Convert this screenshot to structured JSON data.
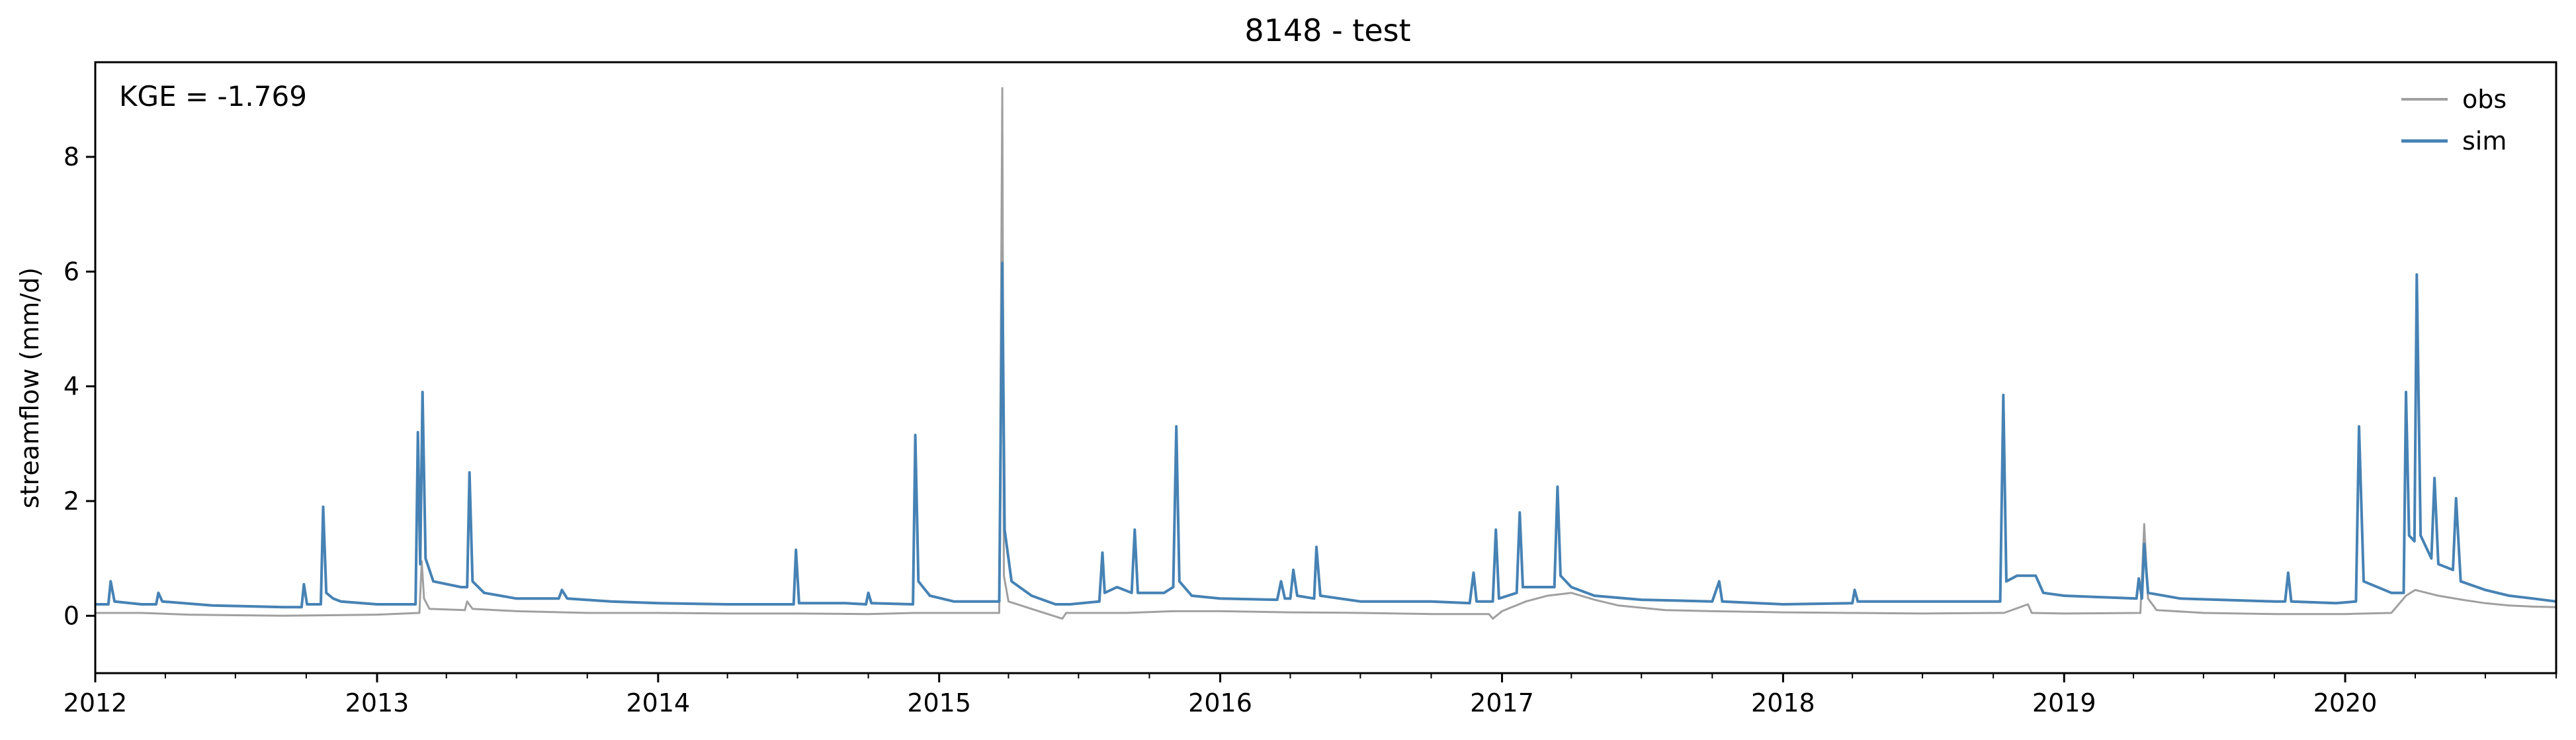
{
  "chart_data": {
    "type": "line",
    "title": "8148 - test",
    "xlabel": "",
    "ylabel": "streamflow (mm/d)",
    "annotation": "KGE = -1.769",
    "xlim": [
      "2012-01-01",
      "2020-10-01"
    ],
    "ylim": [
      -1,
      9.65
    ],
    "x_ticks": [
      "2012",
      "2013",
      "2014",
      "2015",
      "2016",
      "2017",
      "2018",
      "2019",
      "2020"
    ],
    "y_ticks": [
      0,
      2,
      4,
      6,
      8
    ],
    "legend_position": "top-right",
    "grid": false,
    "series": [
      {
        "name": "obs",
        "color": "#a0a0a0",
        "points": [
          [
            "2012-01-01",
            0.05
          ],
          [
            "2012-03-01",
            0.05
          ],
          [
            "2012-05-01",
            0.02
          ],
          [
            "2012-07-01",
            0.01
          ],
          [
            "2012-09-01",
            0.0
          ],
          [
            "2012-11-01",
            0.01
          ],
          [
            "2013-01-01",
            0.02
          ],
          [
            "2013-02-25",
            0.05
          ],
          [
            "2013-02-28",
            0.95
          ],
          [
            "2013-03-03",
            0.3
          ],
          [
            "2013-03-10",
            0.12
          ],
          [
            "2013-04-25",
            0.1
          ],
          [
            "2013-04-28",
            0.25
          ],
          [
            "2013-05-05",
            0.12
          ],
          [
            "2013-07-01",
            0.08
          ],
          [
            "2013-10-01",
            0.05
          ],
          [
            "2014-01-01",
            0.05
          ],
          [
            "2014-04-01",
            0.04
          ],
          [
            "2014-07-01",
            0.04
          ],
          [
            "2014-10-01",
            0.03
          ],
          [
            "2014-11-30",
            0.05
          ],
          [
            "2015-01-15",
            0.05
          ],
          [
            "2015-03-20",
            0.05
          ],
          [
            "2015-03-24",
            9.2
          ],
          [
            "2015-03-26",
            0.7
          ],
          [
            "2015-04-01",
            0.25
          ],
          [
            "2015-05-01",
            0.12
          ],
          [
            "2015-06-10",
            -0.05
          ],
          [
            "2015-06-15",
            0.05
          ],
          [
            "2015-09-01",
            0.05
          ],
          [
            "2015-11-01",
            0.08
          ],
          [
            "2016-01-01",
            0.08
          ],
          [
            "2016-04-01",
            0.06
          ],
          [
            "2016-07-01",
            0.05
          ],
          [
            "2016-10-01",
            0.03
          ],
          [
            "2016-12-15",
            0.03
          ],
          [
            "2016-12-20",
            -0.05
          ],
          [
            "2017-01-01",
            0.08
          ],
          [
            "2017-02-01",
            0.25
          ],
          [
            "2017-03-01",
            0.35
          ],
          [
            "2017-04-01",
            0.4
          ],
          [
            "2017-05-01",
            0.28
          ],
          [
            "2017-06-01",
            0.18
          ],
          [
            "2017-08-01",
            0.1
          ],
          [
            "2017-10-01",
            0.08
          ],
          [
            "2018-01-01",
            0.06
          ],
          [
            "2018-04-01",
            0.05
          ],
          [
            "2018-07-01",
            0.04
          ],
          [
            "2018-10-10",
            0.05
          ],
          [
            "2018-10-15",
            0.05
          ],
          [
            "2018-11-15",
            0.2
          ],
          [
            "2018-11-20",
            0.05
          ],
          [
            "2019-01-01",
            0.04
          ],
          [
            "2019-04-10",
            0.05
          ],
          [
            "2019-04-15",
            1.6
          ],
          [
            "2019-04-20",
            0.3
          ],
          [
            "2019-05-01",
            0.1
          ],
          [
            "2019-07-01",
            0.05
          ],
          [
            "2019-10-01",
            0.03
          ],
          [
            "2020-01-01",
            0.03
          ],
          [
            "2020-03-01",
            0.05
          ],
          [
            "2020-03-20",
            0.35
          ],
          [
            "2020-04-01",
            0.45
          ],
          [
            "2020-05-01",
            0.35
          ],
          [
            "2020-06-01",
            0.28
          ],
          [
            "2020-07-01",
            0.22
          ],
          [
            "2020-08-01",
            0.18
          ],
          [
            "2020-09-01",
            0.16
          ],
          [
            "2020-10-01",
            0.15
          ]
        ]
      },
      {
        "name": "sim",
        "color": "#4682b4",
        "points": [
          [
            "2012-01-01",
            0.2
          ],
          [
            "2012-01-18",
            0.2
          ],
          [
            "2012-01-21",
            0.6
          ],
          [
            "2012-01-26",
            0.25
          ],
          [
            "2012-03-01",
            0.2
          ],
          [
            "2012-03-20",
            0.2
          ],
          [
            "2012-03-23",
            0.4
          ],
          [
            "2012-03-28",
            0.25
          ],
          [
            "2012-06-01",
            0.18
          ],
          [
            "2012-09-01",
            0.15
          ],
          [
            "2012-09-25",
            0.15
          ],
          [
            "2012-09-28",
            0.55
          ],
          [
            "2012-10-02",
            0.2
          ],
          [
            "2012-10-20",
            0.2
          ],
          [
            "2012-10-23",
            1.9
          ],
          [
            "2012-10-27",
            0.4
          ],
          [
            "2012-11-05",
            0.3
          ],
          [
            "2012-11-15",
            0.25
          ],
          [
            "2013-01-01",
            0.2
          ],
          [
            "2013-02-20",
            0.2
          ],
          [
            "2013-02-23",
            3.2
          ],
          [
            "2013-02-26",
            0.9
          ],
          [
            "2013-03-01",
            3.9
          ],
          [
            "2013-03-05",
            1.0
          ],
          [
            "2013-03-15",
            0.6
          ],
          [
            "2013-04-20",
            0.5
          ],
          [
            "2013-04-28",
            0.5
          ],
          [
            "2013-05-01",
            2.5
          ],
          [
            "2013-05-05",
            0.6
          ],
          [
            "2013-05-20",
            0.4
          ],
          [
            "2013-07-01",
            0.3
          ],
          [
            "2013-08-25",
            0.3
          ],
          [
            "2013-08-29",
            0.45
          ],
          [
            "2013-09-05",
            0.3
          ],
          [
            "2013-11-01",
            0.25
          ],
          [
            "2014-01-01",
            0.22
          ],
          [
            "2014-04-01",
            0.2
          ],
          [
            "2014-06-26",
            0.2
          ],
          [
            "2014-06-29",
            1.15
          ],
          [
            "2014-07-03",
            0.22
          ],
          [
            "2014-09-01",
            0.22
          ],
          [
            "2014-09-28",
            0.2
          ],
          [
            "2014-10-01",
            0.4
          ],
          [
            "2014-10-05",
            0.22
          ],
          [
            "2014-11-28",
            0.2
          ],
          [
            "2014-12-01",
            3.15
          ],
          [
            "2014-12-05",
            0.6
          ],
          [
            "2014-12-20",
            0.35
          ],
          [
            "2015-01-20",
            0.25
          ],
          [
            "2015-03-20",
            0.25
          ],
          [
            "2015-03-24",
            6.15
          ],
          [
            "2015-03-27",
            1.5
          ],
          [
            "2015-04-05",
            0.6
          ],
          [
            "2015-05-01",
            0.35
          ],
          [
            "2015-06-01",
            0.2
          ],
          [
            "2015-06-20",
            0.2
          ],
          [
            "2015-07-28",
            0.25
          ],
          [
            "2015-08-01",
            1.1
          ],
          [
            "2015-08-04",
            0.4
          ],
          [
            "2015-08-20",
            0.5
          ],
          [
            "2015-09-08",
            0.4
          ],
          [
            "2015-09-12",
            1.5
          ],
          [
            "2015-09-16",
            0.4
          ],
          [
            "2015-10-20",
            0.4
          ],
          [
            "2015-11-01",
            0.5
          ],
          [
            "2015-11-05",
            3.3
          ],
          [
            "2015-11-09",
            0.6
          ],
          [
            "2015-11-25",
            0.35
          ],
          [
            "2016-01-01",
            0.3
          ],
          [
            "2016-03-15",
            0.28
          ],
          [
            "2016-03-20",
            0.6
          ],
          [
            "2016-03-25",
            0.3
          ],
          [
            "2016-04-01",
            0.3
          ],
          [
            "2016-04-05",
            0.8
          ],
          [
            "2016-04-10",
            0.35
          ],
          [
            "2016-05-02",
            0.3
          ],
          [
            "2016-05-05",
            1.2
          ],
          [
            "2016-05-10",
            0.35
          ],
          [
            "2016-07-01",
            0.25
          ],
          [
            "2016-10-01",
            0.25
          ],
          [
            "2016-11-20",
            0.22
          ],
          [
            "2016-11-25",
            0.75
          ],
          [
            "2016-11-29",
            0.25
          ],
          [
            "2016-12-20",
            0.25
          ],
          [
            "2016-12-24",
            1.5
          ],
          [
            "2016-12-28",
            0.3
          ],
          [
            "2017-01-20",
            0.4
          ],
          [
            "2017-01-24",
            1.8
          ],
          [
            "2017-01-28",
            0.5
          ],
          [
            "2017-02-20",
            0.5
          ],
          [
            "2017-03-10",
            0.5
          ],
          [
            "2017-03-14",
            2.25
          ],
          [
            "2017-03-18",
            0.7
          ],
          [
            "2017-04-01",
            0.5
          ],
          [
            "2017-05-01",
            0.35
          ],
          [
            "2017-07-01",
            0.28
          ],
          [
            "2017-10-01",
            0.25
          ],
          [
            "2017-10-10",
            0.6
          ],
          [
            "2017-10-14",
            0.25
          ],
          [
            "2018-01-01",
            0.2
          ],
          [
            "2018-04-01",
            0.22
          ],
          [
            "2018-04-04",
            0.45
          ],
          [
            "2018-04-08",
            0.25
          ],
          [
            "2018-07-01",
            0.25
          ],
          [
            "2018-10-10",
            0.25
          ],
          [
            "2018-10-14",
            3.85
          ],
          [
            "2018-10-18",
            0.6
          ],
          [
            "2018-11-01",
            0.7
          ],
          [
            "2018-11-25",
            0.7
          ],
          [
            "2018-12-05",
            0.4
          ],
          [
            "2019-01-01",
            0.35
          ],
          [
            "2019-04-05",
            0.3
          ],
          [
            "2019-04-08",
            0.65
          ],
          [
            "2019-04-12",
            0.3
          ],
          [
            "2019-04-15",
            1.25
          ],
          [
            "2019-04-20",
            0.4
          ],
          [
            "2019-06-01",
            0.3
          ],
          [
            "2019-10-01",
            0.25
          ],
          [
            "2019-10-15",
            0.25
          ],
          [
            "2019-10-19",
            0.75
          ],
          [
            "2019-10-23",
            0.25
          ],
          [
            "2019-12-20",
            0.22
          ],
          [
            "2020-01-15",
            0.25
          ],
          [
            "2020-01-19",
            3.3
          ],
          [
            "2020-01-25",
            0.6
          ],
          [
            "2020-03-01",
            0.4
          ],
          [
            "2020-03-17",
            0.4
          ],
          [
            "2020-03-20",
            3.9
          ],
          [
            "2020-03-24",
            1.4
          ],
          [
            "2020-03-31",
            1.3
          ],
          [
            "2020-04-03",
            5.95
          ],
          [
            "2020-04-08",
            1.4
          ],
          [
            "2020-04-22",
            1.0
          ],
          [
            "2020-04-26",
            2.4
          ],
          [
            "2020-05-01",
            0.9
          ],
          [
            "2020-05-20",
            0.8
          ],
          [
            "2020-05-24",
            2.05
          ],
          [
            "2020-05-30",
            0.6
          ],
          [
            "2020-07-01",
            0.45
          ],
          [
            "2020-08-01",
            0.35
          ],
          [
            "2020-09-01",
            0.3
          ],
          [
            "2020-10-01",
            0.25
          ]
        ]
      }
    ]
  }
}
